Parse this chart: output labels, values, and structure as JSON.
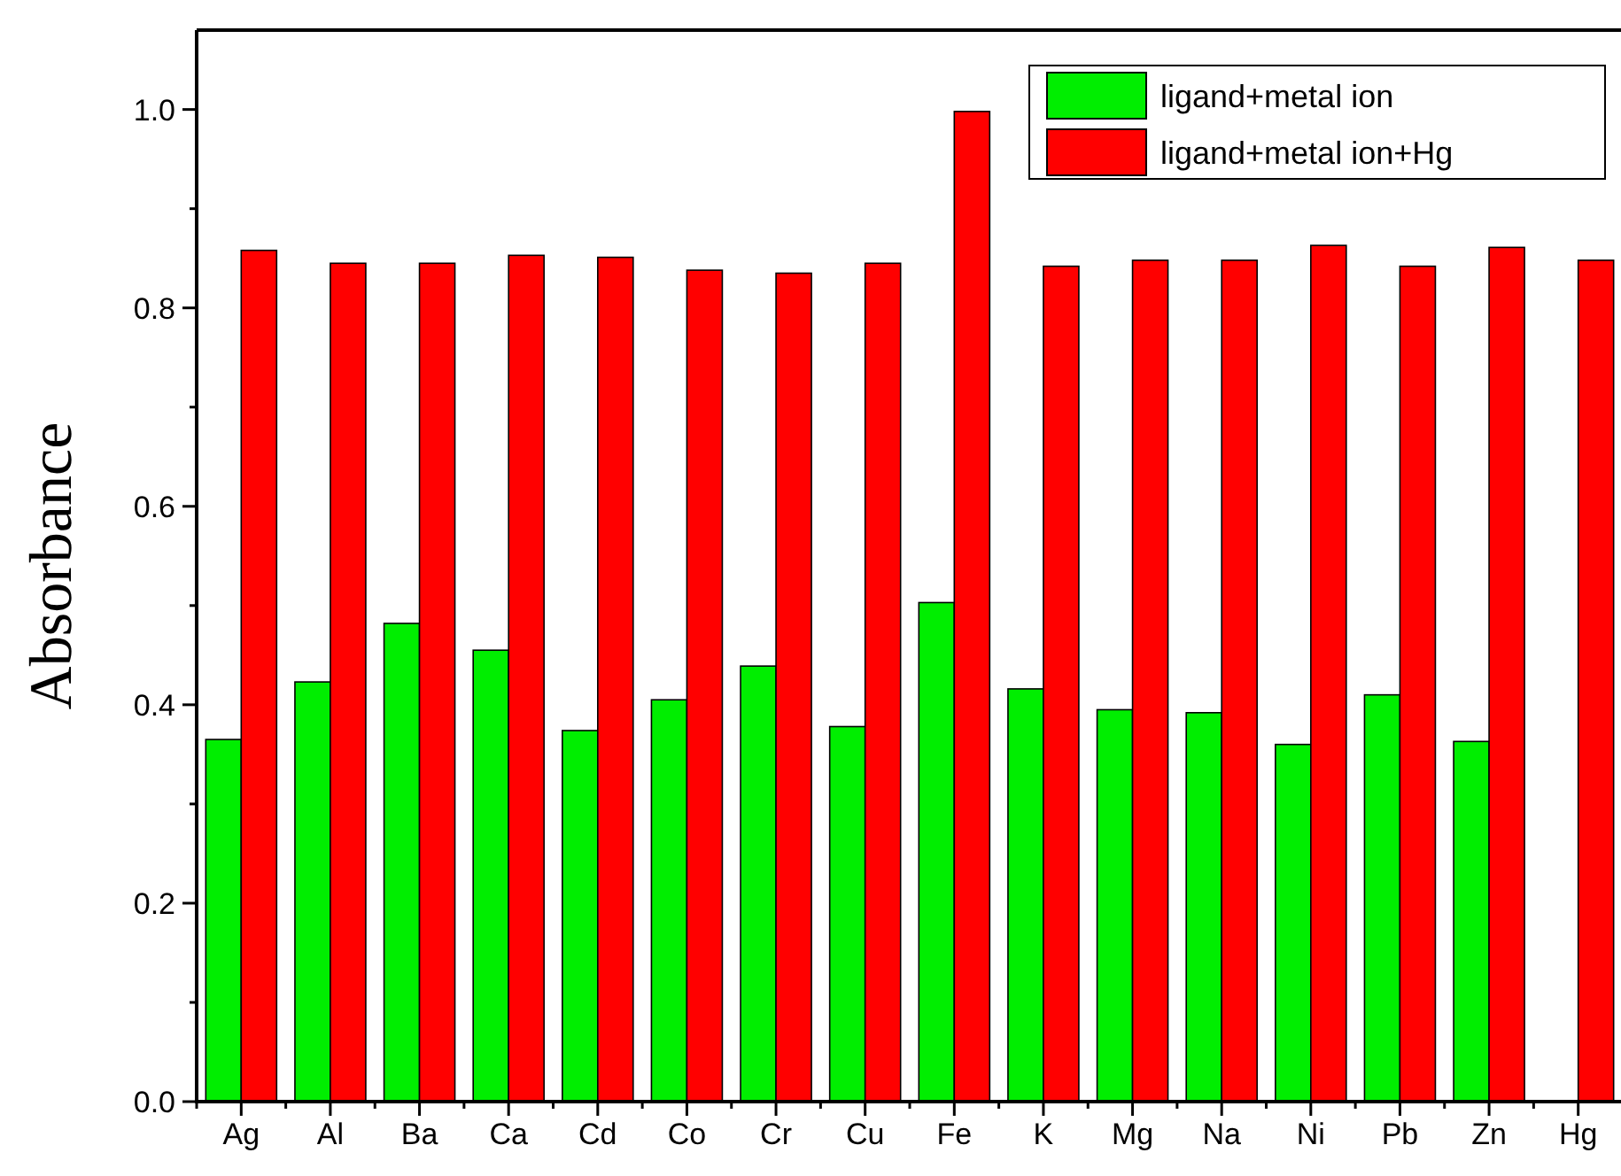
{
  "chart_data": {
    "type": "bar",
    "ylabel": "Absorbance",
    "categories": [
      "Ag",
      "Al",
      "Ba",
      "Ca",
      "Cd",
      "Co",
      "Cr",
      "Cu",
      "Fe",
      "K",
      "Mg",
      "Na",
      "Ni",
      "Pb",
      "Zn",
      "Hg"
    ],
    "series": [
      {
        "name": "ligand+metal ion",
        "color": "#00ee00",
        "values": [
          0.365,
          0.423,
          0.482,
          0.455,
          0.374,
          0.405,
          0.439,
          0.378,
          0.503,
          0.416,
          0.395,
          0.392,
          0.36,
          0.41,
          0.363,
          null
        ]
      },
      {
        "name": "ligand+metal ion+Hg",
        "color": "#ff0000",
        "values": [
          0.858,
          0.845,
          0.845,
          0.853,
          0.851,
          0.838,
          0.835,
          0.845,
          0.998,
          0.842,
          0.848,
          0.848,
          0.863,
          0.842,
          0.861,
          0.848
        ]
      }
    ],
    "ylim": [
      0,
      1.08
    ],
    "yticks": [
      {
        "value": 0,
        "label": "0.0"
      },
      {
        "value": 0.1,
        "label": null
      },
      {
        "value": 0.2,
        "label": "0.2"
      },
      {
        "value": 0.3,
        "label": null
      },
      {
        "value": 0.4,
        "label": "0.4"
      },
      {
        "value": 0.5,
        "label": null
      },
      {
        "value": 0.6,
        "label": "0.6"
      },
      {
        "value": 0.7,
        "label": null
      },
      {
        "value": 0.8,
        "label": "0.8"
      },
      {
        "value": 0.9,
        "label": null
      },
      {
        "value": 1.0,
        "label": "1.0"
      }
    ],
    "grid": false,
    "legend": "top right"
  }
}
